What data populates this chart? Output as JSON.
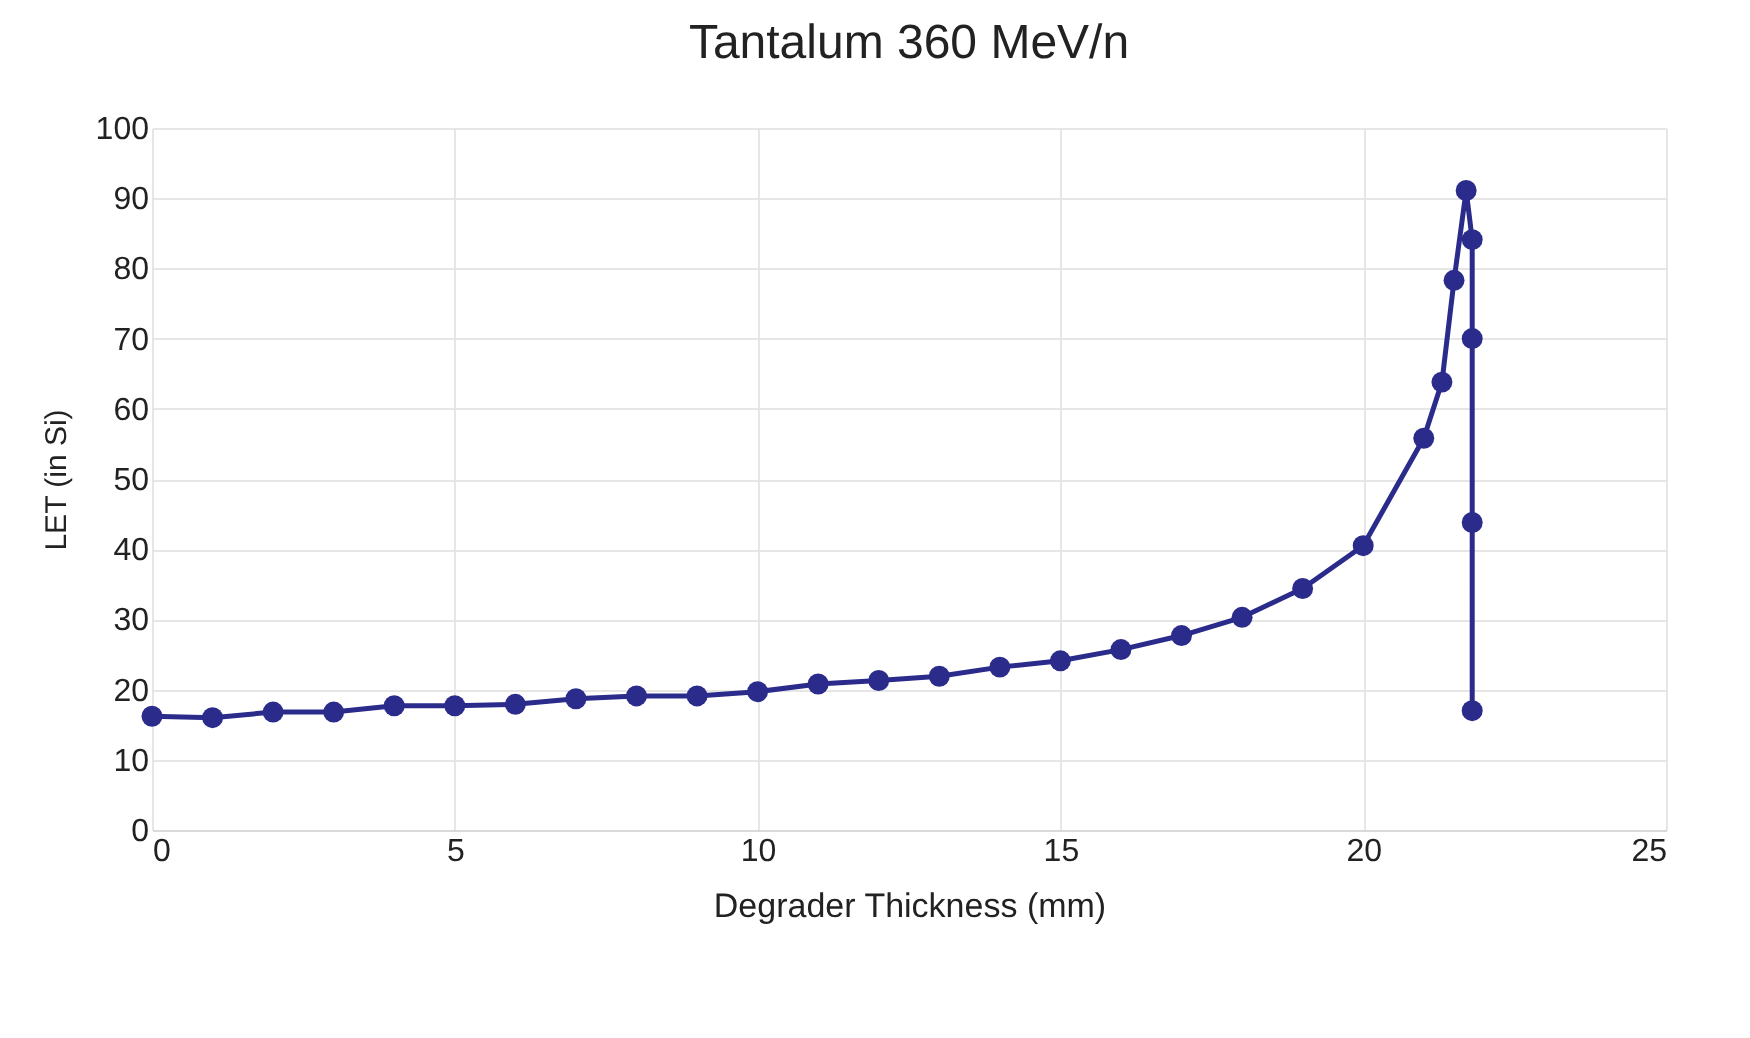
{
  "chart_data": {
    "type": "line",
    "title": "Tantalum 360 MeV/n",
    "xlabel": "Degrader Thickness (mm)",
    "ylabel": "LET (in Si)",
    "x": [
      0,
      1,
      2,
      3,
      4,
      5,
      6,
      7,
      8,
      9,
      10,
      11,
      12,
      13,
      14,
      15,
      16,
      17,
      18,
      19,
      20,
      21,
      21.3,
      21.5,
      21.7,
      21.8,
      21.8,
      21.8,
      21.8
    ],
    "series": [
      {
        "color": "#2b2b8c",
        "values": [
          16.2,
          16.0,
          16.8,
          16.8,
          17.7,
          17.7,
          17.9,
          18.7,
          19.1,
          19.1,
          19.7,
          20.8,
          21.3,
          21.9,
          23.2,
          24.1,
          25.7,
          27.7,
          30.3,
          34.4,
          40.5,
          55.8,
          63.8,
          78.3,
          91.1,
          84.1,
          70.0,
          43.8,
          17.0
        ]
      }
    ],
    "xlim": [
      0,
      25
    ],
    "xticks": [
      0,
      5,
      10,
      15,
      20,
      25
    ],
    "ylim": [
      0,
      100
    ],
    "yticks": [
      0,
      10,
      20,
      30,
      40,
      50,
      60,
      70,
      80,
      90,
      100
    ],
    "grid": true,
    "marker": "circle",
    "line_style": "solid"
  }
}
